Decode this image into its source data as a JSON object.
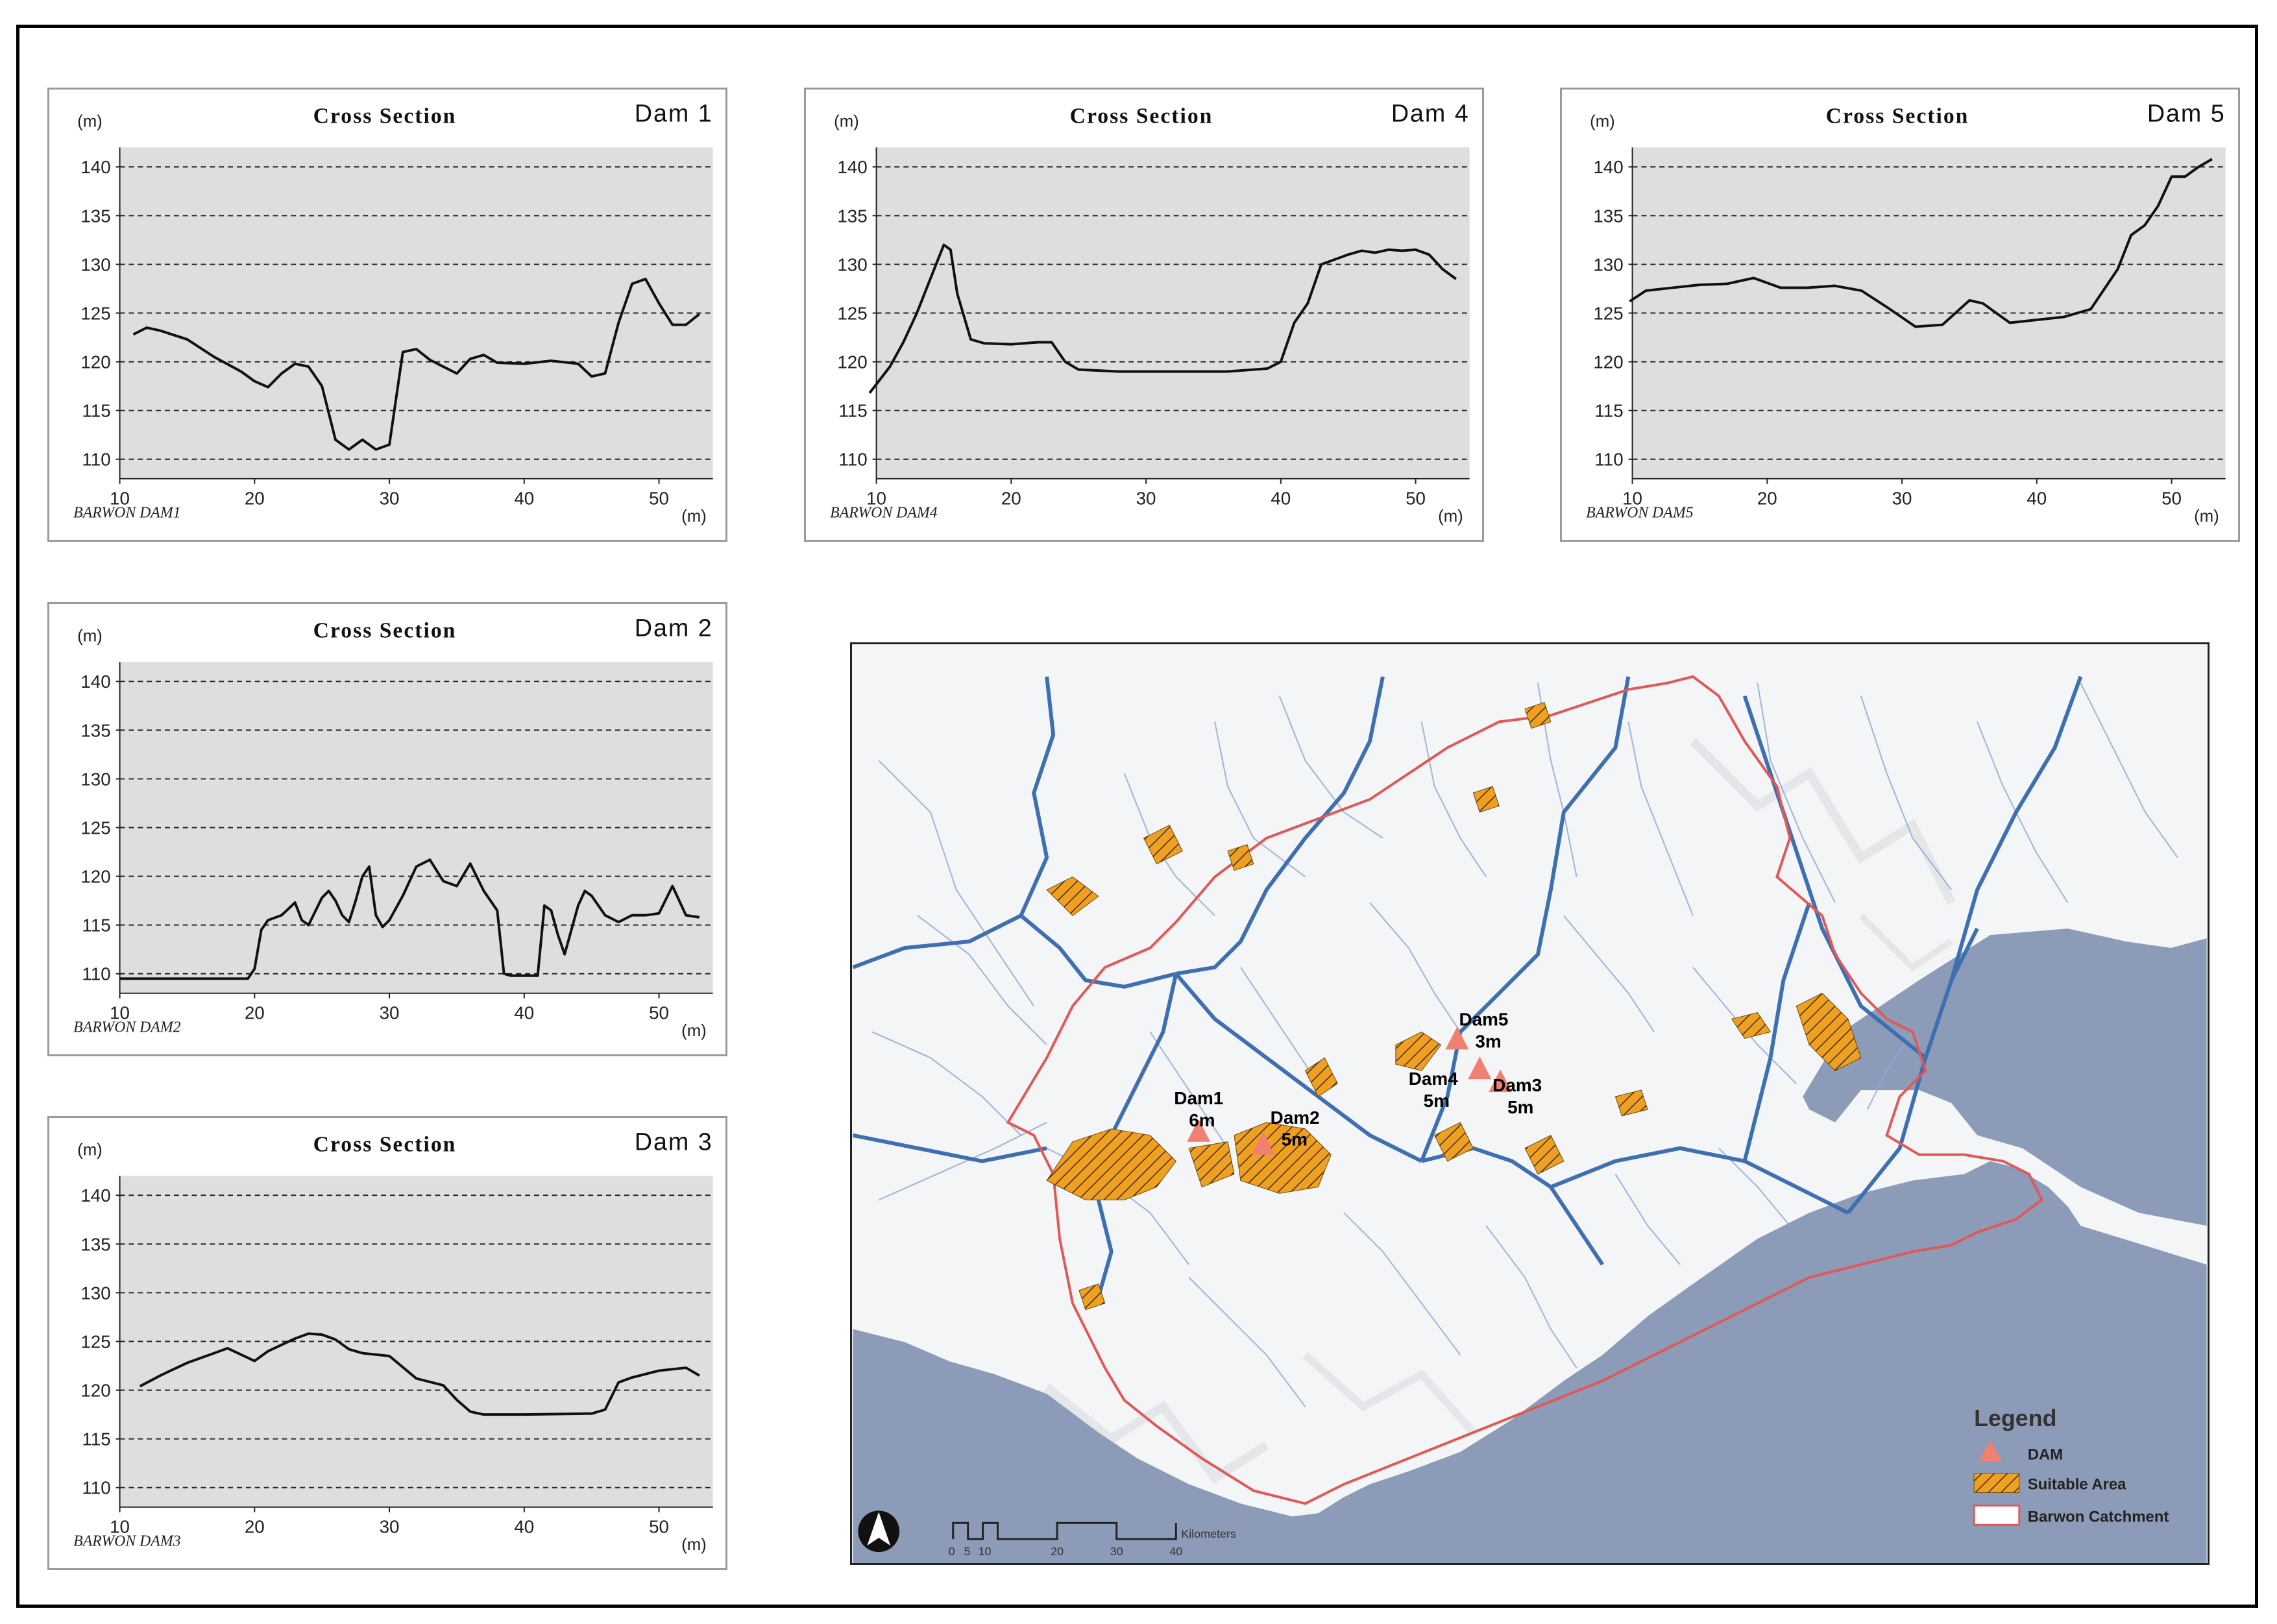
{
  "figure": {
    "charts": [
      {
        "id": "dam1",
        "title": "Cross Section",
        "dam_label": "Dam 1",
        "footer": "BARWON DAM1"
      },
      {
        "id": "dam4",
        "title": "Cross Section",
        "dam_label": "Dam 4",
        "footer": "BARWON DAM4"
      },
      {
        "id": "dam5",
        "title": "Cross Section",
        "dam_label": "Dam 5",
        "footer": "BARWON DAM5"
      },
      {
        "id": "dam2",
        "title": "Cross Section",
        "dam_label": "Dam 2",
        "footer": "BARWON DAM2"
      },
      {
        "id": "dam3",
        "title": "Cross Section",
        "dam_label": "Dam 3",
        "footer": "BARWON DAM3"
      }
    ]
  },
  "chart_data": [
    {
      "type": "line",
      "title": "Cross Section",
      "subtitle": "Dam 1",
      "ylabel": "(m)",
      "xlabel": "(m)",
      "xlim": [
        10,
        54
      ],
      "ylim": [
        108,
        142
      ],
      "xticks": [
        10,
        20,
        30,
        40,
        50
      ],
      "yticks": [
        110,
        115,
        120,
        125,
        130,
        135,
        140
      ],
      "grid": "horizontal dashed",
      "footer": "BARWON DAM1",
      "x": [
        11,
        12,
        13,
        15,
        17,
        19,
        20,
        21,
        22,
        23,
        24,
        25,
        26,
        27,
        28,
        29,
        30,
        31,
        32,
        33,
        34,
        35,
        36,
        37,
        38,
        40,
        42,
        44,
        45,
        46,
        47,
        48,
        49,
        50,
        51,
        52,
        53
      ],
      "y": [
        122.8,
        123.5,
        123.2,
        122.3,
        120.5,
        119,
        118,
        117.4,
        118.8,
        119.8,
        119.5,
        117.5,
        112,
        111,
        112,
        111,
        111.5,
        121,
        121.3,
        120.2,
        119.5,
        118.8,
        120.3,
        120.7,
        119.9,
        119.8,
        120.1,
        119.8,
        118.5,
        118.8,
        124,
        128,
        128.5,
        126,
        123.8,
        123.8,
        124.9
      ]
    },
    {
      "type": "line",
      "title": "Cross Section",
      "subtitle": "Dam 4",
      "ylabel": "(m)",
      "xlabel": "(m)",
      "xlim": [
        10,
        54
      ],
      "ylim": [
        108,
        142
      ],
      "xticks": [
        10,
        20,
        30,
        40,
        50
      ],
      "yticks": [
        110,
        115,
        120,
        125,
        130,
        135,
        140
      ],
      "grid": "horizontal dashed",
      "footer": "BARWON DAM4",
      "x": [
        9.5,
        11,
        12,
        13,
        14,
        15,
        15.5,
        16,
        17,
        18,
        20,
        22,
        23,
        24,
        25,
        28,
        32,
        36,
        39,
        40,
        41,
        42,
        43,
        44,
        45,
        46,
        47,
        48,
        49,
        50,
        51,
        52,
        53
      ],
      "y": [
        116.8,
        119.5,
        122,
        125,
        128.5,
        132,
        131.5,
        127,
        122.3,
        121.9,
        121.8,
        122,
        122,
        120,
        119.2,
        119,
        119,
        119,
        119.3,
        120,
        124,
        126,
        130,
        130.5,
        131,
        131.4,
        131.2,
        131.5,
        131.4,
        131.5,
        131,
        129.5,
        128.5
      ]
    },
    {
      "type": "line",
      "title": "Cross Section",
      "subtitle": "Dam 5",
      "ylabel": "(m)",
      "xlabel": "(m)",
      "xlim": [
        10,
        54
      ],
      "ylim": [
        108,
        142
      ],
      "xticks": [
        10,
        20,
        30,
        40,
        50
      ],
      "yticks": [
        110,
        115,
        120,
        125,
        130,
        135,
        140
      ],
      "grid": "horizontal dashed",
      "footer": "BARWON DAM5",
      "x": [
        9.8,
        11,
        13,
        15,
        17,
        19,
        21,
        23,
        25,
        27,
        29,
        31,
        33,
        35,
        36,
        38,
        40,
        42,
        44,
        46,
        47,
        48,
        49,
        50,
        51,
        52,
        53
      ],
      "y": [
        126.2,
        127.3,
        127.6,
        127.9,
        128,
        128.6,
        127.6,
        127.6,
        127.8,
        127.3,
        125.5,
        123.6,
        123.8,
        126.3,
        126,
        124,
        124.3,
        124.6,
        125.4,
        129.5,
        133,
        134,
        136,
        139,
        139,
        140,
        140.8
      ]
    },
    {
      "type": "line",
      "title": "Cross Section",
      "subtitle": "Dam 2",
      "ylabel": "(m)",
      "xlabel": "(m)",
      "xlim": [
        10,
        54
      ],
      "ylim": [
        108,
        142
      ],
      "xticks": [
        10,
        20,
        30,
        40,
        50
      ],
      "yticks": [
        110,
        115,
        120,
        125,
        130,
        135,
        140
      ],
      "grid": "horizontal dashed",
      "footer": "BARWON DAM2",
      "x": [
        10,
        15,
        19.5,
        20,
        20.5,
        21,
        22,
        23,
        23.5,
        24,
        25,
        25.5,
        26,
        26.5,
        27,
        27.5,
        28,
        28.5,
        29,
        29.5,
        30,
        31,
        32,
        33,
        34,
        35,
        36,
        37,
        38,
        38.5,
        39,
        40,
        41,
        41.5,
        42,
        42.5,
        43,
        44,
        44.5,
        45,
        46,
        47,
        48,
        49,
        50,
        51,
        52,
        53
      ],
      "y": [
        109.5,
        109.5,
        109.5,
        110.5,
        114.5,
        115.5,
        116,
        117.3,
        115.5,
        115,
        117.8,
        118.5,
        117.5,
        116,
        115.3,
        117.5,
        120,
        121,
        116,
        114.8,
        115.5,
        118,
        121,
        121.7,
        119.5,
        119,
        121.3,
        118.5,
        116.5,
        110,
        109.8,
        109.8,
        109.8,
        117,
        116.5,
        114,
        112,
        117,
        118.5,
        118,
        116,
        115.3,
        116,
        116,
        116.2,
        119,
        116,
        115.8
      ]
    },
    {
      "type": "line",
      "title": "Cross Section",
      "subtitle": "Dam 3",
      "ylabel": "(m)",
      "xlabel": "(m)",
      "xlim": [
        10,
        54
      ],
      "ylim": [
        108,
        142
      ],
      "xticks": [
        10,
        20,
        30,
        40,
        50
      ],
      "yticks": [
        110,
        115,
        120,
        125,
        130,
        135,
        140
      ],
      "grid": "horizontal dashed",
      "footer": "BARWON DAM3",
      "x": [
        11.5,
        13,
        15,
        17,
        18,
        20,
        21,
        23,
        24,
        25,
        26,
        27,
        28,
        30,
        32,
        34,
        35,
        36,
        37,
        40,
        45,
        46,
        47,
        48,
        50,
        52,
        53
      ],
      "y": [
        120.4,
        121.5,
        122.8,
        123.8,
        124.3,
        123,
        124,
        125.3,
        125.8,
        125.7,
        125.2,
        124.2,
        123.8,
        123.5,
        121.2,
        120.5,
        119,
        117.8,
        117.5,
        117.5,
        117.6,
        118,
        120.8,
        121.3,
        122,
        122.3,
        121.5
      ]
    }
  ],
  "map": {
    "legend_title": "Legend",
    "legend_items": [
      {
        "label": "DAM",
        "color": "#f08072"
      },
      {
        "label": "Suitable Area",
        "color": "#f0a020"
      },
      {
        "label": "Barwon Catchment",
        "color": "#e05050"
      }
    ],
    "dams": [
      {
        "name": "Dam1",
        "depth": "6m"
      },
      {
        "name": "Dam2",
        "depth": "5m"
      },
      {
        "name": "Dam3",
        "depth": "5m"
      },
      {
        "name": "Dam4",
        "depth": "5m"
      },
      {
        "name": "Dam5",
        "depth": "3m"
      }
    ],
    "scale_bar": {
      "ticks": [
        "0",
        "5",
        "10",
        "20",
        "30",
        "40"
      ],
      "unit": "Kilometers"
    },
    "colors": {
      "sea": "#8c9cb8",
      "land": "#f4f5f6",
      "river_major": "#3e6fb0",
      "river_minor": "#7e9dcf",
      "catchment": "#e05858"
    }
  }
}
